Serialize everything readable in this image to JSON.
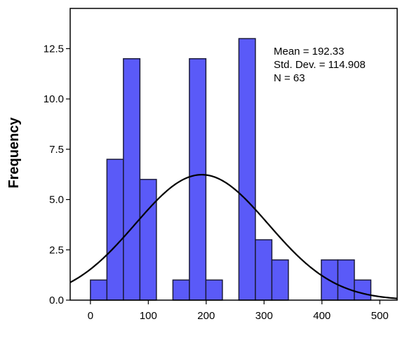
{
  "chart_data": {
    "type": "bar",
    "subtype": "histogram",
    "ylabel": "Frequency",
    "xlabel": "",
    "bin_width": 28.5,
    "bins": [
      {
        "start": 0,
        "end": 28.5,
        "count": 1
      },
      {
        "start": 28.5,
        "end": 57,
        "count": 7
      },
      {
        "start": 57,
        "end": 85.5,
        "count": 12
      },
      {
        "start": 85.5,
        "end": 114,
        "count": 6
      },
      {
        "start": 142.5,
        "end": 171,
        "count": 1
      },
      {
        "start": 171,
        "end": 199.5,
        "count": 12
      },
      {
        "start": 199.5,
        "end": 228,
        "count": 1
      },
      {
        "start": 256.5,
        "end": 285,
        "count": 13
      },
      {
        "start": 285,
        "end": 313.5,
        "count": 3
      },
      {
        "start": 313.5,
        "end": 342,
        "count": 2
      },
      {
        "start": 399,
        "end": 427.5,
        "count": 2
      },
      {
        "start": 427.5,
        "end": 456,
        "count": 2
      },
      {
        "start": 456,
        "end": 484.5,
        "count": 1
      }
    ],
    "xlim": [
      -35,
      530
    ],
    "ylim": [
      0,
      14.5
    ],
    "x_ticks": [
      0,
      100,
      200,
      300,
      400,
      500
    ],
    "x_tick_labels": [
      "0",
      "100",
      "200",
      "300",
      "400",
      "500"
    ],
    "y_ticks": [
      0,
      2.5,
      5,
      7.5,
      10,
      12.5
    ],
    "y_tick_labels": [
      "0.0",
      "2.5",
      "5.0",
      "7.5",
      "10.0",
      "12.5"
    ],
    "normal_curve": {
      "mean": 192.33,
      "sd": 114.908,
      "n": 63
    },
    "stats_text": [
      "Mean = 192.33",
      "Std. Dev. = 114.908",
      "N = 63"
    ],
    "legend_position": "top-right",
    "grid": false,
    "colors": {
      "bar_fill": "#5A5AF8",
      "bar_stroke": "#1C1C3C",
      "curve": "#000000",
      "axis": "#000000"
    }
  }
}
